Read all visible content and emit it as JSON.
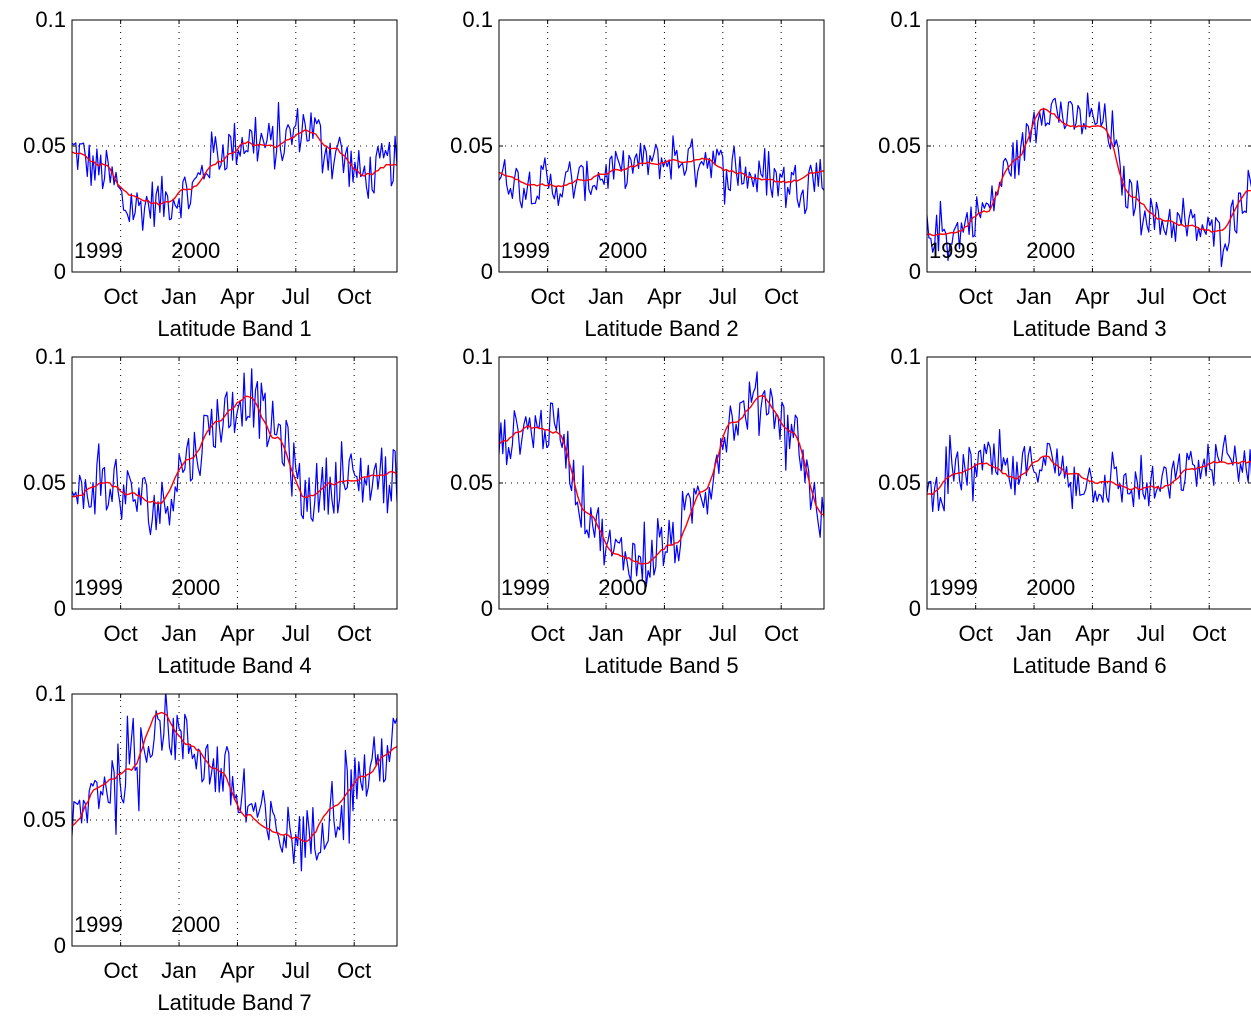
{
  "figure": {
    "colors": {
      "raw": "#0000ff",
      "smooth": "#ff0000",
      "axes": "#000000"
    }
  },
  "chart_data": [
    {
      "type": "line",
      "title": "Latitude Band 1",
      "xlabel": "",
      "ylabel": "",
      "ylim": [
        0,
        0.1
      ],
      "yticks": [
        {
          "value": 0,
          "label": "0"
        },
        {
          "value": 0.05,
          "label": "0.05"
        },
        {
          "value": 0.1,
          "label": "0.1"
        }
      ],
      "xticks": [
        {
          "month": 3,
          "label": "Oct"
        },
        {
          "month": 6,
          "label": "Jan"
        },
        {
          "month": 9,
          "label": "Apr"
        },
        {
          "month": 12,
          "label": "Jul"
        },
        {
          "month": 15,
          "label": "Oct"
        }
      ],
      "xlim_months": [
        0.5,
        17.2
      ],
      "year_labels": [
        {
          "month": 0.6,
          "label": "1999"
        },
        {
          "month": 5.6,
          "label": "2000"
        }
      ],
      "grid": true,
      "series": [
        {
          "role": "raw",
          "x_months": [
            0.5,
            2,
            3.5,
            5,
            6.5,
            8,
            9.5,
            11,
            12.5,
            14,
            15.5,
            17.2
          ],
          "values": [
            0.048,
            0.04,
            0.025,
            0.028,
            0.032,
            0.048,
            0.052,
            0.05,
            0.058,
            0.048,
            0.038,
            0.044
          ],
          "noise": 0.01
        },
        {
          "role": "smooth",
          "x_months": [
            0.5,
            2,
            3.5,
            5,
            6.5,
            8,
            9.5,
            11,
            12.5,
            14,
            15.5,
            17.2
          ],
          "values": [
            0.047,
            0.043,
            0.031,
            0.027,
            0.033,
            0.044,
            0.051,
            0.05,
            0.056,
            0.048,
            0.039,
            0.043
          ],
          "noise": 0.0015
        }
      ]
    },
    {
      "type": "line",
      "title": "Latitude Band 2",
      "xlabel": "",
      "ylabel": "",
      "ylim": [
        0,
        0.1
      ],
      "yticks": [
        {
          "value": 0,
          "label": "0"
        },
        {
          "value": 0.05,
          "label": "0.05"
        },
        {
          "value": 0.1,
          "label": "0.1"
        }
      ],
      "xticks": [
        {
          "month": 3,
          "label": "Oct"
        },
        {
          "month": 6,
          "label": "Jan"
        },
        {
          "month": 9,
          "label": "Apr"
        },
        {
          "month": 12,
          "label": "Jul"
        },
        {
          "month": 15,
          "label": "Oct"
        }
      ],
      "xlim_months": [
        0.5,
        17.2
      ],
      "year_labels": [
        {
          "month": 0.6,
          "label": "1999"
        },
        {
          "month": 5.6,
          "label": "2000"
        }
      ],
      "grid": true,
      "series": [
        {
          "role": "raw",
          "x_months": [
            0.5,
            2,
            3.5,
            5,
            6.5,
            8,
            9.5,
            11,
            12.5,
            14,
            15.5,
            17.2
          ],
          "values": [
            0.038,
            0.035,
            0.034,
            0.036,
            0.04,
            0.044,
            0.044,
            0.046,
            0.04,
            0.037,
            0.036,
            0.04
          ],
          "noise": 0.008
        },
        {
          "role": "smooth",
          "x_months": [
            0.5,
            2,
            3.5,
            5,
            6.5,
            8,
            9.5,
            11,
            12.5,
            14,
            15.5,
            17.2
          ],
          "values": [
            0.039,
            0.035,
            0.034,
            0.037,
            0.04,
            0.043,
            0.044,
            0.045,
            0.04,
            0.036,
            0.036,
            0.04
          ],
          "noise": 0.0012
        }
      ]
    },
    {
      "type": "line",
      "title": "Latitude Band 3",
      "xlabel": "",
      "ylabel": "",
      "ylim": [
        0,
        0.1
      ],
      "yticks": [
        {
          "value": 0,
          "label": "0"
        },
        {
          "value": 0.05,
          "label": "0.05"
        },
        {
          "value": 0.1,
          "label": "0.1"
        }
      ],
      "xticks": [
        {
          "month": 3,
          "label": "Oct"
        },
        {
          "month": 6,
          "label": "Jan"
        },
        {
          "month": 9,
          "label": "Apr"
        },
        {
          "month": 12,
          "label": "Jul"
        },
        {
          "month": 15,
          "label": "Oct"
        }
      ],
      "xlim_months": [
        0.5,
        17.2
      ],
      "year_labels": [
        {
          "month": 0.6,
          "label": "1999"
        },
        {
          "month": 5.6,
          "label": "2000"
        }
      ],
      "grid": true,
      "series": [
        {
          "role": "raw",
          "x_months": [
            0.5,
            2,
            3.5,
            5,
            6.5,
            8,
            9.5,
            11,
            12.5,
            14,
            15.5,
            17.2
          ],
          "values": [
            0.015,
            0.016,
            0.025,
            0.045,
            0.066,
            0.06,
            0.06,
            0.03,
            0.02,
            0.018,
            0.015,
            0.034
          ],
          "noise": 0.008
        },
        {
          "role": "smooth",
          "x_months": [
            0.5,
            2,
            3.5,
            5,
            6.5,
            8,
            9.5,
            11,
            12.5,
            14,
            15.5,
            17.2
          ],
          "values": [
            0.015,
            0.016,
            0.024,
            0.044,
            0.064,
            0.058,
            0.058,
            0.03,
            0.021,
            0.018,
            0.016,
            0.033
          ],
          "noise": 0.0012
        }
      ]
    },
    {
      "type": "line",
      "title": "Latitude Band 4",
      "xlabel": "",
      "ylabel": "",
      "ylim": [
        0,
        0.1
      ],
      "yticks": [
        {
          "value": 0,
          "label": "0"
        },
        {
          "value": 0.05,
          "label": "0.05"
        },
        {
          "value": 0.1,
          "label": "0.1"
        }
      ],
      "xticks": [
        {
          "month": 3,
          "label": "Oct"
        },
        {
          "month": 6,
          "label": "Jan"
        },
        {
          "month": 9,
          "label": "Apr"
        },
        {
          "month": 12,
          "label": "Jul"
        },
        {
          "month": 15,
          "label": "Oct"
        }
      ],
      "xlim_months": [
        0.5,
        17.2
      ],
      "year_labels": [
        {
          "month": 0.6,
          "label": "1999"
        },
        {
          "month": 5.6,
          "label": "2000"
        }
      ],
      "grid": true,
      "series": [
        {
          "role": "raw",
          "x_months": [
            0.5,
            2,
            3.5,
            5,
            6.5,
            8,
            9.5,
            11,
            12.5,
            14,
            15.5,
            17.2
          ],
          "values": [
            0.042,
            0.05,
            0.045,
            0.04,
            0.06,
            0.075,
            0.085,
            0.07,
            0.045,
            0.05,
            0.052,
            0.054
          ],
          "noise": 0.012
        },
        {
          "role": "smooth",
          "x_months": [
            0.5,
            2,
            3.5,
            5,
            6.5,
            8,
            9.5,
            11,
            12.5,
            14,
            15.5,
            17.2
          ],
          "values": [
            0.044,
            0.05,
            0.046,
            0.042,
            0.06,
            0.075,
            0.084,
            0.068,
            0.044,
            0.05,
            0.052,
            0.054
          ],
          "noise": 0.0015
        }
      ]
    },
    {
      "type": "line",
      "title": "Latitude Band 5",
      "xlabel": "",
      "ylabel": "",
      "ylim": [
        0,
        0.1
      ],
      "yticks": [
        {
          "value": 0,
          "label": "0"
        },
        {
          "value": 0.05,
          "label": "0.05"
        },
        {
          "value": 0.1,
          "label": "0.1"
        }
      ],
      "xticks": [
        {
          "month": 3,
          "label": "Oct"
        },
        {
          "month": 6,
          "label": "Jan"
        },
        {
          "month": 9,
          "label": "Apr"
        },
        {
          "month": 12,
          "label": "Jul"
        },
        {
          "month": 15,
          "label": "Oct"
        }
      ],
      "xlim_months": [
        0.5,
        17.2
      ],
      "year_labels": [
        {
          "month": 0.6,
          "label": "1999"
        },
        {
          "month": 5.6,
          "label": "2000"
        }
      ],
      "grid": true,
      "series": [
        {
          "role": "raw",
          "x_months": [
            0.5,
            2,
            3.5,
            5,
            6.5,
            8,
            9.5,
            11,
            12.5,
            14,
            15.5,
            17.2
          ],
          "values": [
            0.066,
            0.072,
            0.072,
            0.038,
            0.022,
            0.02,
            0.026,
            0.048,
            0.075,
            0.085,
            0.072,
            0.035
          ],
          "noise": 0.01
        },
        {
          "role": "smooth",
          "x_months": [
            0.5,
            2,
            3.5,
            5,
            6.5,
            8,
            9.5,
            11,
            12.5,
            14,
            15.5,
            17.2
          ],
          "values": [
            0.066,
            0.072,
            0.07,
            0.038,
            0.022,
            0.018,
            0.026,
            0.047,
            0.074,
            0.084,
            0.07,
            0.037
          ],
          "noise": 0.0012
        }
      ]
    },
    {
      "type": "line",
      "title": "Latitude Band 6",
      "xlabel": "",
      "ylabel": "",
      "ylim": [
        0,
        0.1
      ],
      "yticks": [
        {
          "value": 0,
          "label": "0"
        },
        {
          "value": 0.05,
          "label": "0.05"
        },
        {
          "value": 0.1,
          "label": "0.1"
        }
      ],
      "xticks": [
        {
          "month": 3,
          "label": "Oct"
        },
        {
          "month": 6,
          "label": "Jan"
        },
        {
          "month": 9,
          "label": "Apr"
        },
        {
          "month": 12,
          "label": "Jul"
        },
        {
          "month": 15,
          "label": "Oct"
        }
      ],
      "xlim_months": [
        0.5,
        17.2
      ],
      "year_labels": [
        {
          "month": 0.6,
          "label": "1999"
        },
        {
          "month": 5.6,
          "label": "2000"
        }
      ],
      "grid": true,
      "series": [
        {
          "role": "raw",
          "x_months": [
            0.5,
            2,
            3.5,
            5,
            6.5,
            8,
            9.5,
            11,
            12.5,
            14,
            15.5,
            17.2
          ],
          "values": [
            0.045,
            0.054,
            0.058,
            0.052,
            0.06,
            0.052,
            0.05,
            0.048,
            0.048,
            0.055,
            0.058,
            0.058
          ],
          "noise": 0.009
        },
        {
          "role": "smooth",
          "x_months": [
            0.5,
            2,
            3.5,
            5,
            6.5,
            8,
            9.5,
            11,
            12.5,
            14,
            15.5,
            17.2
          ],
          "values": [
            0.045,
            0.054,
            0.058,
            0.052,
            0.06,
            0.053,
            0.05,
            0.048,
            0.048,
            0.055,
            0.058,
            0.058
          ],
          "noise": 0.0012
        }
      ]
    },
    {
      "type": "line",
      "title": "Latitude Band 7",
      "xlabel": "",
      "ylabel": "",
      "ylim": [
        0,
        0.1
      ],
      "yticks": [
        {
          "value": 0,
          "label": "0"
        },
        {
          "value": 0.05,
          "label": "0.05"
        },
        {
          "value": 0.1,
          "label": "0.1"
        }
      ],
      "xticks": [
        {
          "month": 3,
          "label": "Oct"
        },
        {
          "month": 6,
          "label": "Jan"
        },
        {
          "month": 9,
          "label": "Apr"
        },
        {
          "month": 12,
          "label": "Jul"
        },
        {
          "month": 15,
          "label": "Oct"
        }
      ],
      "xlim_months": [
        0.5,
        17.2
      ],
      "year_labels": [
        {
          "month": 0.6,
          "label": "1999"
        },
        {
          "month": 5.6,
          "label": "2000"
        }
      ],
      "grid": true,
      "series": [
        {
          "role": "raw",
          "x_months": [
            0.5,
            2,
            3.5,
            5,
            6.5,
            8,
            9.5,
            11,
            12.5,
            14,
            15.5,
            17.2
          ],
          "values": [
            0.048,
            0.064,
            0.07,
            0.09,
            0.08,
            0.07,
            0.055,
            0.045,
            0.042,
            0.055,
            0.068,
            0.08
          ],
          "noise": 0.013
        },
        {
          "role": "smooth",
          "x_months": [
            0.5,
            2,
            3.5,
            5,
            6.5,
            8,
            9.5,
            11,
            12.5,
            14,
            15.5,
            17.2
          ],
          "values": [
            0.048,
            0.064,
            0.07,
            0.093,
            0.08,
            0.07,
            0.052,
            0.045,
            0.042,
            0.055,
            0.068,
            0.079
          ],
          "noise": 0.0015
        }
      ]
    }
  ]
}
